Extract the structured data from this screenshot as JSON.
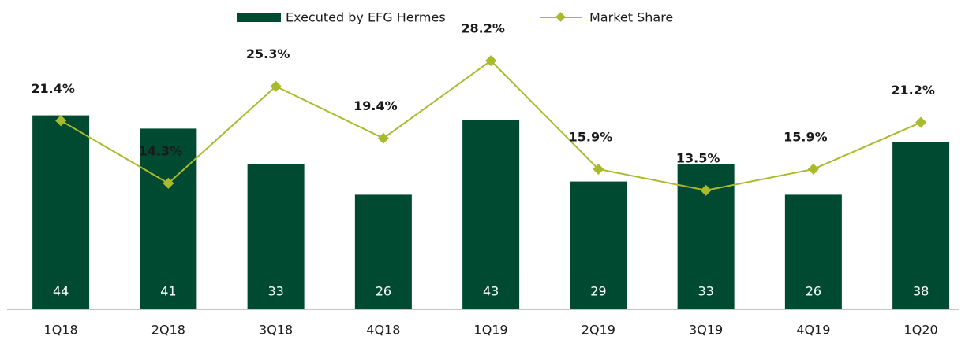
{
  "chart_data": {
    "type": "bar-line",
    "categories": [
      "1Q18",
      "2Q18",
      "3Q18",
      "4Q18",
      "1Q19",
      "2Q19",
      "3Q19",
      "4Q19",
      "1Q20"
    ],
    "series": [
      {
        "name": "Executed by EFG Hermes",
        "color": "#004a32",
        "type": "bar",
        "values": [
          44,
          41,
          33,
          26,
          43,
          29,
          33,
          26,
          38
        ]
      },
      {
        "name": "Market Share",
        "color": "#a9bb2c",
        "type": "line",
        "axis": "y2",
        "values": [
          21.4,
          14.3,
          25.3,
          19.4,
          28.2,
          15.9,
          13.5,
          15.9,
          21.2
        ],
        "value_labels": [
          "21.4%",
          "14.3%",
          "25.3%",
          "19.4%",
          "28.2%",
          "15.9%",
          "13.5%",
          "15.9%",
          "21.2%"
        ]
      }
    ],
    "ylim": [
      0,
      60
    ],
    "y2lim": [
      0,
      30
    ],
    "legend": "top"
  }
}
